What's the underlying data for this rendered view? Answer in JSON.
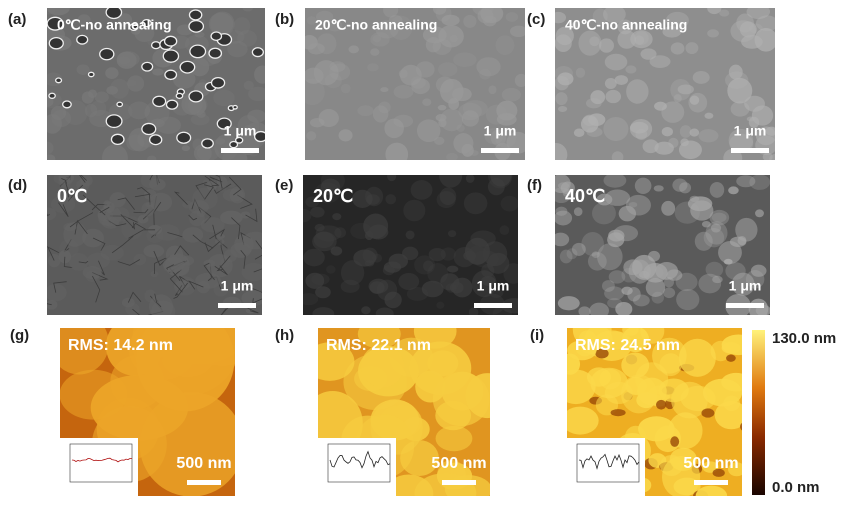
{
  "panels": [
    {
      "label": "(a)",
      "title": "0℃-no annealing",
      "scale_bar": "1 μm"
    },
    {
      "label": "(b)",
      "title": "20℃-no annealing",
      "scale_bar": "1 μm"
    },
    {
      "label": "(c)",
      "title": "40℃-no annealing",
      "scale_bar": "1 μm"
    },
    {
      "label": "(d)",
      "title": "0℃",
      "scale_bar": "1 μm"
    },
    {
      "label": "(e)",
      "title": "20℃",
      "scale_bar": "1 μm"
    },
    {
      "label": "(f)",
      "title": "40℃",
      "scale_bar": "1 μm"
    },
    {
      "label": "(g)",
      "title": "RMS: 14.2 nm",
      "scale_bar": "500 nm"
    },
    {
      "label": "(h)",
      "title": "RMS: 22.1 nm",
      "scale_bar": "500 nm"
    },
    {
      "label": "(i)",
      "title": "RMS: 24.5 nm",
      "scale_bar": "500 nm"
    }
  ],
  "colorbar": {
    "max_label": "130.0 nm",
    "min_label": "0.0 nm"
  }
}
